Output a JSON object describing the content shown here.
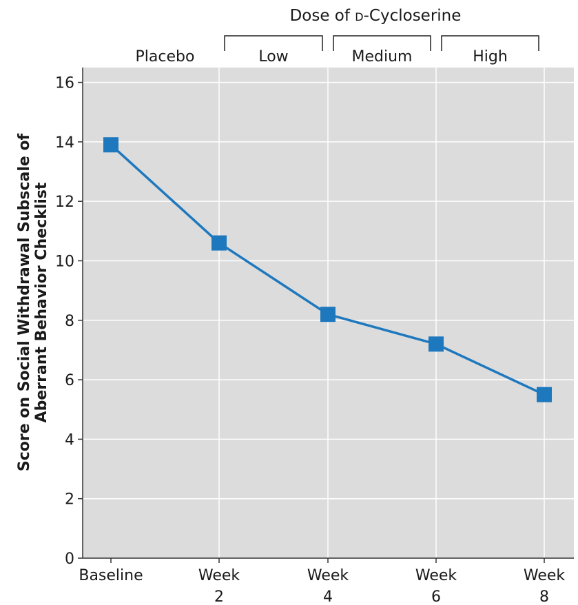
{
  "chart_data": {
    "type": "line",
    "title": "Dose of d-Cycloserine",
    "title_parts": {
      "prefix": "Dose of ",
      "smallcaps": "d",
      "suffix": "-Cycloserine"
    },
    "xlabel": "",
    "ylabel_lines": [
      "Score on Social Withdrawal Subscale of",
      "Aberrant Behavior Checklist"
    ],
    "categories": [
      {
        "line1": "Baseline",
        "line2": ""
      },
      {
        "line1": "Week",
        "line2": "2"
      },
      {
        "line1": "Week",
        "line2": "4"
      },
      {
        "line1": "Week",
        "line2": "6"
      },
      {
        "line1": "Week",
        "line2": "8"
      }
    ],
    "series": [
      {
        "values": [
          13.9,
          10.6,
          8.2,
          7.2,
          5.5
        ]
      }
    ],
    "ylim": [
      0,
      16.5
    ],
    "yticks": [
      "0",
      "2",
      "4",
      "6",
      "8",
      "10",
      "12",
      "14",
      "16"
    ],
    "phases": [
      {
        "label": "Placebo",
        "from": 0,
        "to": 1,
        "bracket": false
      },
      {
        "label": "Low",
        "from": 1,
        "to": 2,
        "bracket": true
      },
      {
        "label": "Medium",
        "from": 2,
        "to": 3,
        "bracket": true
      },
      {
        "label": "High",
        "from": 3,
        "to": 4,
        "bracket": true
      }
    ],
    "grid": true,
    "colors": {
      "line": "#1e78be",
      "marker": "#1e78be",
      "plot_bg": "#dcdcdc",
      "grid": "#ffffff",
      "axis": "#333333"
    }
  }
}
